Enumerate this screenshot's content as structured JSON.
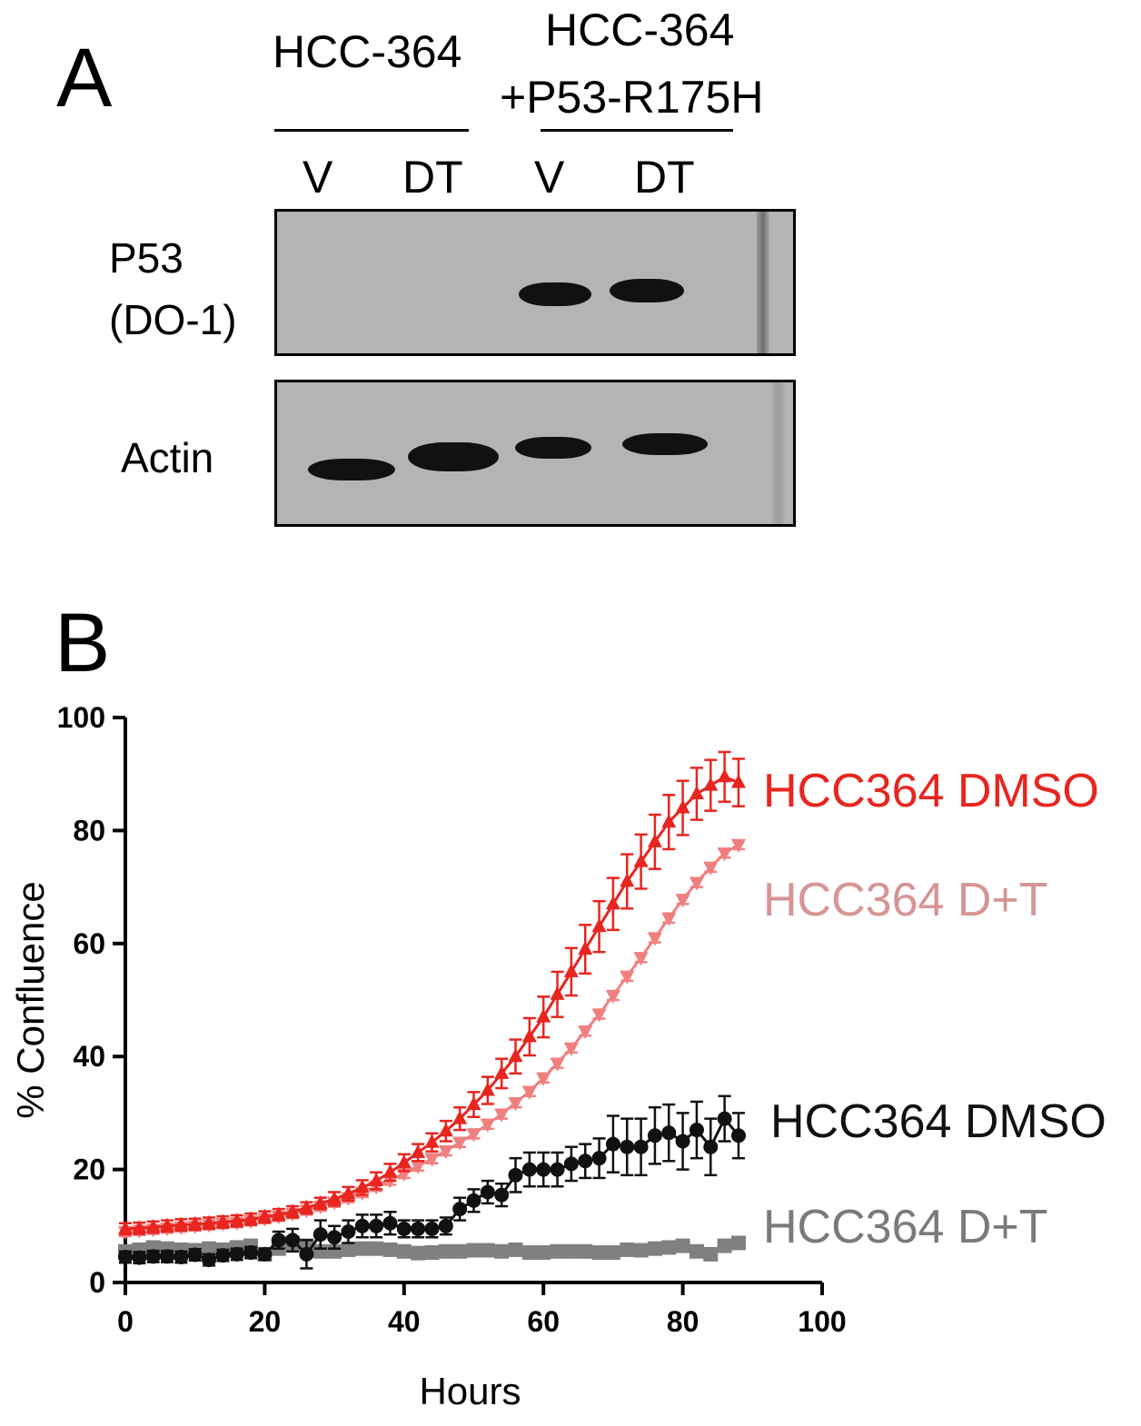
{
  "panel_a": {
    "letter": "A",
    "group1_label": "HCC-364",
    "group2_label_line1": "HCC-364",
    "group2_label_line2": "+P53-R175H",
    "lanes": [
      "V",
      "DT",
      "V",
      "DT"
    ],
    "row1_label_line1": "P53",
    "row1_label_line2": "(DO-1)",
    "row2_label": "Actin"
  },
  "panel_b": {
    "letter": "B"
  },
  "chart_data": {
    "type": "line",
    "xlabel": "Hours",
    "ylabel": "% Confluence",
    "xlim": [
      0,
      100
    ],
    "ylim": [
      0,
      100
    ],
    "xticks": [
      "0",
      "20",
      "40",
      "60",
      "80",
      "100"
    ],
    "yticks": [
      "0",
      "20",
      "40",
      "60",
      "80",
      "100"
    ],
    "series": [
      {
        "name": "HCC364 DMSO",
        "color": "#e8251f",
        "marker": "triangle-up",
        "x": [
          0,
          2,
          4,
          6,
          8,
          10,
          12,
          14,
          16,
          18,
          20,
          22,
          24,
          26,
          28,
          30,
          32,
          34,
          36,
          38,
          40,
          42,
          44,
          46,
          48,
          50,
          52,
          54,
          56,
          58,
          60,
          62,
          64,
          66,
          68,
          70,
          72,
          74,
          76,
          78,
          80,
          82,
          84,
          86,
          88
        ],
        "y": [
          9.5,
          9.6,
          9.8,
          10,
          10.2,
          10.3,
          10.5,
          10.7,
          10.9,
          11.2,
          11.6,
          12,
          12.5,
          13.2,
          14,
          14.8,
          15.7,
          16.8,
          18,
          19.5,
          21.2,
          23,
          24.8,
          26.8,
          29,
          31.5,
          34,
          37,
          40,
          43.5,
          47,
          51,
          55,
          59,
          63,
          67,
          71,
          74.5,
          78,
          81.5,
          84,
          86.5,
          88,
          89.5,
          88.5
        ],
        "err": [
          1,
          1,
          1,
          1,
          1,
          1,
          1,
          1,
          1,
          1,
          1,
          1,
          1,
          1,
          1,
          1.2,
          1.2,
          1.3,
          1.5,
          1.5,
          1.5,
          1.5,
          1.6,
          1.8,
          2,
          2.2,
          2.4,
          2.6,
          3,
          3.3,
          3.6,
          4,
          4.2,
          4.3,
          4.5,
          4.6,
          4.8,
          4.8,
          4.8,
          4.8,
          4.8,
          4.6,
          4.5,
          4.4,
          4.2
        ]
      },
      {
        "name": "HCC364 D+T",
        "color": "#f08080",
        "marker": "triangle-down",
        "x": [
          0,
          2,
          4,
          6,
          8,
          10,
          12,
          14,
          16,
          18,
          20,
          22,
          24,
          26,
          28,
          30,
          32,
          34,
          36,
          38,
          40,
          42,
          44,
          46,
          48,
          50,
          52,
          54,
          56,
          58,
          60,
          62,
          64,
          66,
          68,
          70,
          72,
          74,
          76,
          78,
          80,
          82,
          84,
          86,
          88
        ],
        "y": [
          9,
          9.2,
          9.4,
          9.6,
          9.8,
          10,
          10.2,
          10.4,
          10.6,
          10.9,
          11.3,
          11.7,
          12.2,
          12.8,
          13.5,
          14.2,
          15,
          15.9,
          17,
          18.1,
          19.3,
          20.6,
          21.9,
          23.3,
          24.8,
          26.3,
          28,
          29.8,
          31.8,
          33.8,
          36.2,
          38.8,
          41.5,
          44.5,
          47.5,
          50.8,
          54.2,
          57.5,
          61,
          64.5,
          67.8,
          70.8,
          73.5,
          76,
          77.5
        ],
        "err": [
          0.8,
          0.8,
          0.8,
          0.8,
          0.8,
          0.8,
          0.8,
          0.8,
          0.8,
          0.8,
          0.8,
          0.8,
          0.8,
          0.8,
          0.8,
          0.8,
          0.8,
          0.8,
          0.8,
          0.8,
          0.8,
          0.8,
          0.8,
          0.8,
          0.8,
          0.8,
          0.8,
          0.8,
          0.8,
          0.8,
          0.8,
          0.8,
          0.8,
          0.8,
          0.8,
          0.8,
          0.8,
          0.8,
          0.8,
          0.8,
          0.8,
          0.8,
          0.8,
          0.8,
          0.8
        ]
      },
      {
        "name": "HCC364 DMSO",
        "color": "#111111",
        "marker": "circle",
        "x": [
          0,
          2,
          4,
          6,
          8,
          10,
          12,
          14,
          16,
          18,
          20,
          22,
          24,
          26,
          28,
          30,
          32,
          34,
          36,
          38,
          40,
          42,
          44,
          46,
          48,
          50,
          52,
          54,
          56,
          58,
          60,
          62,
          64,
          66,
          68,
          70,
          72,
          74,
          76,
          78,
          80,
          82,
          84,
          86,
          88
        ],
        "y": [
          4.5,
          4.4,
          4.6,
          4.6,
          4.5,
          4.9,
          4,
          4.8,
          5,
          5.3,
          5,
          7.5,
          7.5,
          5,
          8.5,
          8,
          9,
          10,
          10,
          10.5,
          9.5,
          9.5,
          9.5,
          10,
          13,
          14.5,
          16,
          15.5,
          19,
          20,
          20,
          20,
          21,
          21.5,
          22,
          24.5,
          24,
          24,
          26,
          26.5,
          25,
          27,
          24,
          29,
          26
        ],
        "err": [
          1,
          1,
          1,
          1,
          1,
          1,
          1,
          1,
          1,
          1,
          1,
          1.5,
          2,
          2.5,
          2.5,
          2,
          2,
          2,
          2,
          2,
          1.5,
          1.5,
          1.5,
          1.5,
          2,
          2,
          2,
          2,
          3,
          3,
          3,
          3,
          3,
          3,
          3.5,
          5,
          5,
          5,
          5,
          5,
          5,
          5,
          5,
          4,
          4
        ]
      },
      {
        "name": "HCC364 D+T",
        "color": "#808080",
        "marker": "square",
        "x": [
          0,
          2,
          4,
          6,
          8,
          10,
          12,
          14,
          16,
          18,
          20,
          22,
          24,
          26,
          28,
          30,
          32,
          34,
          36,
          38,
          40,
          42,
          44,
          46,
          48,
          50,
          52,
          54,
          56,
          58,
          60,
          62,
          64,
          66,
          68,
          70,
          72,
          74,
          76,
          78,
          80,
          82,
          84,
          86,
          88
        ],
        "y": [
          5.5,
          5.8,
          6.2,
          6,
          5.8,
          5.7,
          6,
          5.8,
          6.2,
          6.5,
          5,
          6,
          7,
          6.5,
          5.5,
          5.5,
          5.8,
          6,
          6,
          5.8,
          5.5,
          5.2,
          5.3,
          5.5,
          5.5,
          5.7,
          5.7,
          5.5,
          5.8,
          5.3,
          5.3,
          5.5,
          5.5,
          5.5,
          5.3,
          5.3,
          5.8,
          5.7,
          6,
          6.2,
          6.5,
          5.5,
          5,
          6.5,
          7
        ],
        "err": [
          0.8,
          0.8,
          0.8,
          0.8,
          0.8,
          0.8,
          0.8,
          0.8,
          0.8,
          0.8,
          0.8,
          0.8,
          0.8,
          0.8,
          0.8,
          0.8,
          0.8,
          0.8,
          0.8,
          0.8,
          0.8,
          0.8,
          0.8,
          0.8,
          0.8,
          0.8,
          0.8,
          0.8,
          0.8,
          0.8,
          0.8,
          0.8,
          0.8,
          0.8,
          0.8,
          0.8,
          0.8,
          0.8,
          0.8,
          0.8,
          0.8,
          0.8,
          0.8,
          0.8,
          0.8
        ]
      }
    ],
    "series_label_colors": [
      "#e8251f",
      "#d69595",
      "#111111",
      "#7a7a7a"
    ]
  }
}
